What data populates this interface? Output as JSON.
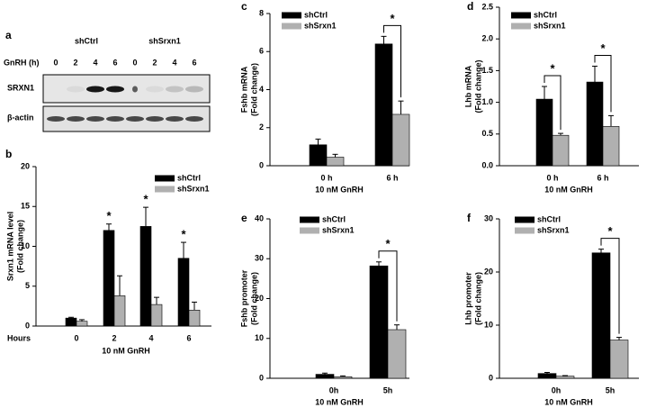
{
  "blot": {
    "panel": "a",
    "groups": [
      "shCtrl",
      "shSrxn1"
    ],
    "lane_header": "GnRH (h)",
    "lanes": [
      "0",
      "2",
      "4",
      "6",
      "0",
      "2",
      "4",
      "6"
    ],
    "rows": [
      "SRXN1",
      "β-actin"
    ]
  },
  "chart_data": [
    {
      "type": "bar",
      "panel": "b",
      "ylabel": [
        "Srxn1 mRNA level",
        "(Fold change)"
      ],
      "xlabel": "10 nM GnRH",
      "x_caption": "Hours",
      "categories": [
        "0",
        "2",
        "4",
        "6"
      ],
      "series": [
        {
          "name": "shCtrl",
          "color": "#000000",
          "values": [
            1.0,
            12.0,
            12.5,
            8.5
          ],
          "errors": [
            0.1,
            0.8,
            2.4,
            2.0
          ]
        },
        {
          "name": "shSrxn1",
          "color": "#b0b0b0",
          "values": [
            0.6,
            3.8,
            2.7,
            2.0
          ],
          "errors": [
            0.2,
            2.5,
            0.9,
            1.0
          ]
        }
      ],
      "ylim": [
        0,
        20
      ],
      "yticks": [
        0,
        5,
        10,
        15,
        20
      ],
      "legend": "upper right",
      "significance": [
        null,
        "*",
        "*",
        "*"
      ],
      "annotation_style": "star"
    },
    {
      "type": "bar",
      "panel": "c",
      "ylabel": [
        "Fshb mRNA",
        "(Fold change)"
      ],
      "xlabel": "10 nM GnRH",
      "categories": [
        "0 h",
        "6 h"
      ],
      "series": [
        {
          "name": "shCtrl",
          "color": "#000000",
          "values": [
            1.1,
            6.4
          ],
          "errors": [
            0.3,
            0.4
          ]
        },
        {
          "name": "shSrxn1",
          "color": "#b0b0b0",
          "values": [
            0.45,
            2.7
          ],
          "errors": [
            0.15,
            0.7
          ]
        }
      ],
      "ylim": [
        0,
        8
      ],
      "yticks": [
        0,
        2,
        4,
        6,
        8
      ],
      "legend": "upper left",
      "significance": [
        null,
        "*"
      ],
      "annotation_style": "bracket"
    },
    {
      "type": "bar",
      "panel": "d",
      "ylabel": [
        "Lhb mRNA",
        "(Fold change)"
      ],
      "xlabel": "10 nM GnRH",
      "categories": [
        "0 h",
        "6 h"
      ],
      "series": [
        {
          "name": "shCtrl",
          "color": "#000000",
          "values": [
            1.05,
            1.32
          ],
          "errors": [
            0.2,
            0.25
          ]
        },
        {
          "name": "shSrxn1",
          "color": "#b0b0b0",
          "values": [
            0.48,
            0.62
          ],
          "errors": [
            0.03,
            0.17
          ]
        }
      ],
      "ylim": [
        0,
        2.5
      ],
      "yticks": [
        {
          "value": 0,
          "label": "0.0"
        },
        0.5,
        {
          "value": 1,
          "label": "1.0"
        },
        1.5,
        {
          "value": 2,
          "label": "2.0"
        },
        2.5
      ],
      "legend": "upper left",
      "significance": [
        "*",
        "*"
      ],
      "annotation_style": "bracket"
    },
    {
      "type": "bar",
      "panel": "e",
      "ylabel": [
        "Fshb promoter",
        "(Fold change)"
      ],
      "xlabel": "10 nM GnRH",
      "categories": [
        "0h",
        "5h"
      ],
      "series": [
        {
          "name": "shCtrl",
          "color": "#000000",
          "values": [
            1.0,
            28.2
          ],
          "errors": [
            0.3,
            1.0
          ]
        },
        {
          "name": "shSrxn1",
          "color": "#b0b0b0",
          "values": [
            0.4,
            12.2
          ],
          "errors": [
            0.2,
            1.2
          ]
        }
      ],
      "ylim": [
        0,
        40
      ],
      "yticks": [
        0,
        10,
        20,
        30,
        40
      ],
      "legend": "upper left",
      "significance": [
        null,
        "*"
      ],
      "annotation_style": "bracket"
    },
    {
      "type": "bar",
      "panel": "f",
      "ylabel": [
        "Lhb promoter",
        "(Fold change)"
      ],
      "xlabel": "10 nM GnRH",
      "categories": [
        "0h",
        "5h"
      ],
      "series": [
        {
          "name": "shCtrl",
          "color": "#000000",
          "values": [
            0.9,
            23.6
          ],
          "errors": [
            0.2,
            0.7
          ]
        },
        {
          "name": "shSrxn1",
          "color": "#b0b0b0",
          "values": [
            0.4,
            7.2
          ],
          "errors": [
            0.1,
            0.5
          ]
        }
      ],
      "ylim": [
        0,
        30
      ],
      "yticks": [
        0,
        10,
        20,
        30
      ],
      "legend": "upper left",
      "significance": [
        null,
        "*"
      ],
      "annotation_style": "bracket"
    }
  ]
}
